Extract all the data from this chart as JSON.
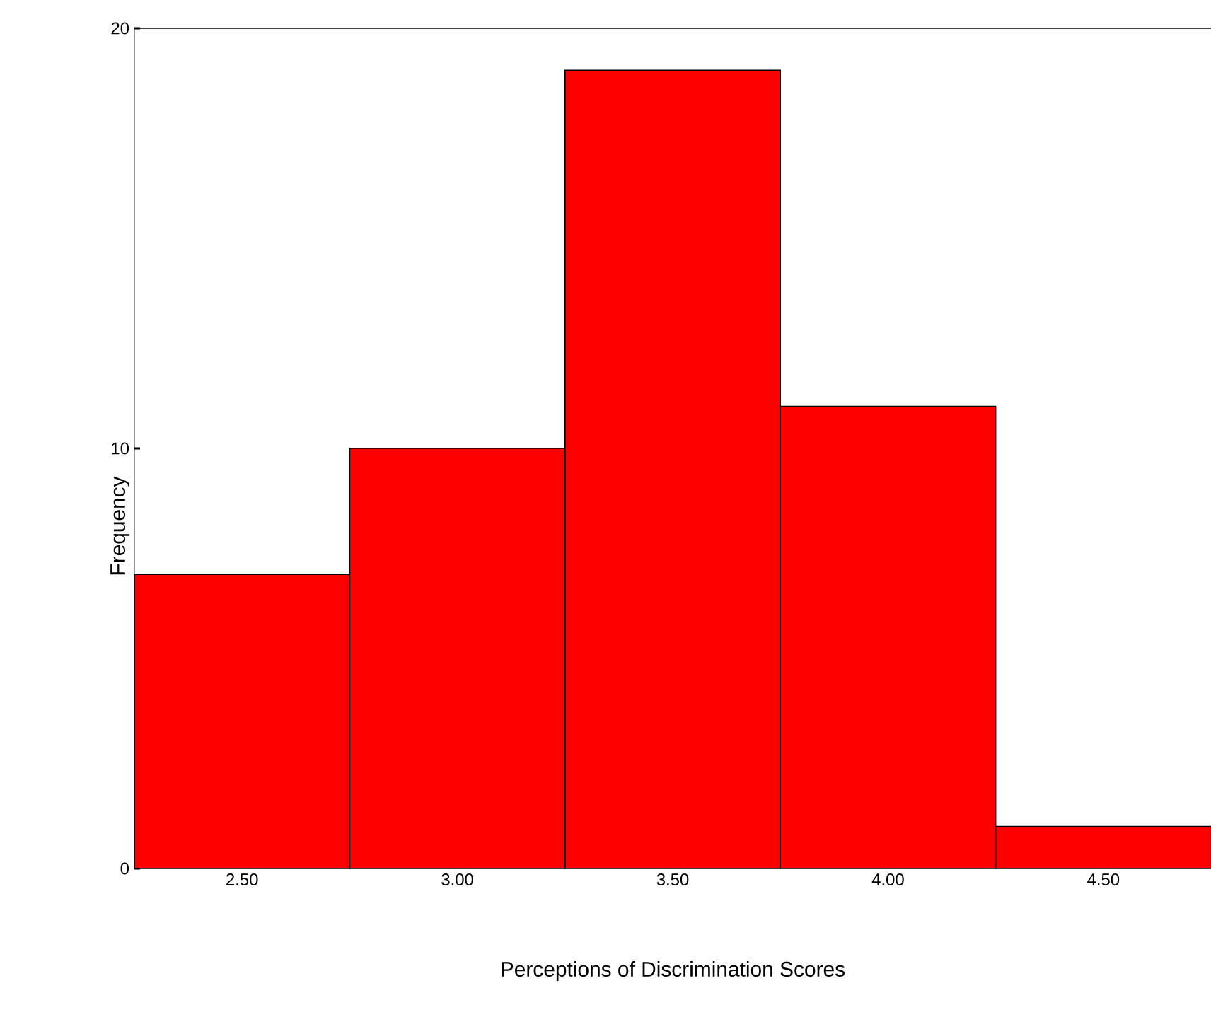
{
  "chart_data": {
    "type": "histogram",
    "xlabel": "Perceptions of Discrimination Scores",
    "ylabel": "Frequency",
    "bins": [
      2.25,
      2.75,
      3.25,
      3.75,
      4.25,
      4.75
    ],
    "values": [
      7,
      10,
      19,
      11,
      1
    ],
    "color": "#ff0000",
    "xlim": [
      2.25,
      4.75
    ],
    "ylim": [
      0,
      20
    ],
    "xticks": [
      {
        "value": 2.5,
        "label": "2.50"
      },
      {
        "value": 3.0,
        "label": "3.00"
      },
      {
        "value": 3.5,
        "label": "3.50"
      },
      {
        "value": 4.0,
        "label": "4.00"
      },
      {
        "value": 4.5,
        "label": "4.50"
      }
    ],
    "yticks": [
      0,
      10,
      20
    ],
    "grid": false
  }
}
